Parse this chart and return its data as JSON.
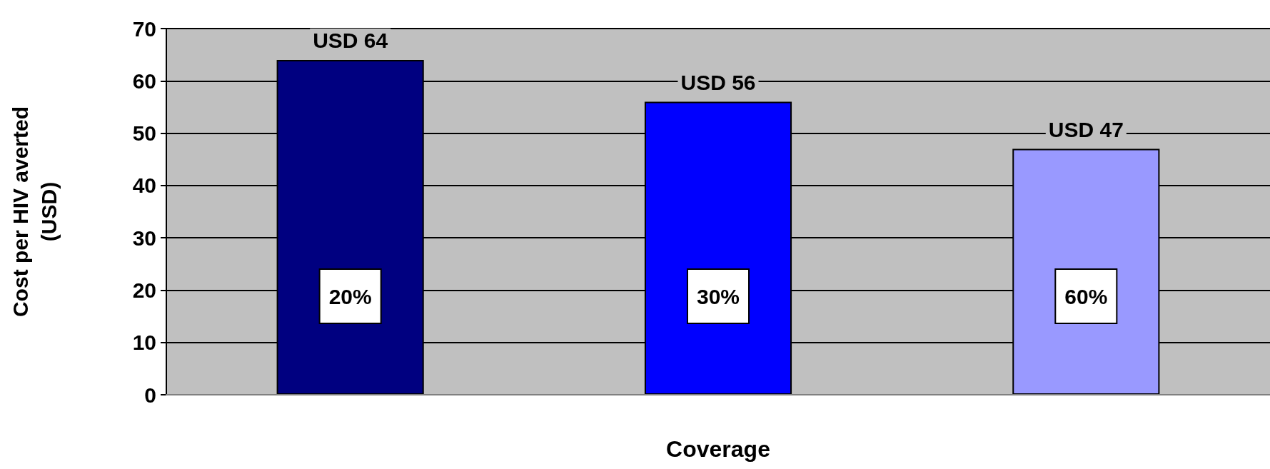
{
  "chart_data": {
    "type": "bar",
    "xlabel": "Coverage",
    "ylabel": "Cost per HIV averted\n(USD)",
    "categories": [
      "20%",
      "30%",
      "60%"
    ],
    "values": [
      64,
      56,
      47
    ],
    "colors": [
      "#000080",
      "#0000ff",
      "#9999ff"
    ],
    "value_labels": [
      "USD 64",
      "USD 56",
      "USD 47"
    ],
    "ylim": [
      0,
      70
    ],
    "yticks": [
      0,
      10,
      20,
      30,
      40,
      50,
      60,
      70
    ],
    "grid": "y"
  }
}
